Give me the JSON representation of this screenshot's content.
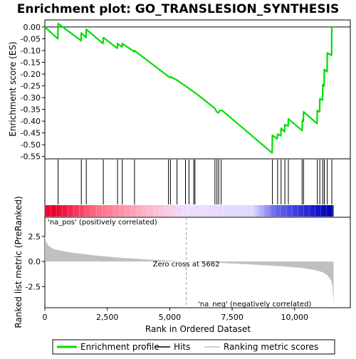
{
  "chart_data": {
    "type": "line",
    "title": "Enrichment plot: GO_TRANSLESION_SYNTHESIS",
    "top_panel": {
      "ylabel": "Enrichment score (ES)",
      "ylim": [
        -0.56,
        0.03
      ],
      "yticks": [
        0.0,
        -0.05,
        -0.1,
        -0.15,
        -0.2,
        -0.25,
        -0.3,
        -0.35,
        -0.4,
        -0.45,
        -0.5,
        -0.55
      ],
      "ytick_labels": [
        "0.00",
        "-0.05",
        "-0.10",
        "-0.15",
        "-0.20",
        "-0.25",
        "-0.30",
        "-0.35",
        "-0.40",
        "-0.45",
        "-0.50",
        "-0.55"
      ],
      "series_color": "#00dd00",
      "es_points": [
        [
          0,
          0.0
        ],
        [
          520,
          -0.05
        ],
        [
          530,
          0.015
        ],
        [
          1450,
          -0.058
        ],
        [
          1460,
          -0.025
        ],
        [
          1650,
          -0.045
        ],
        [
          1660,
          -0.01
        ],
        [
          2330,
          -0.07
        ],
        [
          2340,
          -0.045
        ],
        [
          2900,
          -0.09
        ],
        [
          2910,
          -0.07
        ],
        [
          3090,
          -0.085
        ],
        [
          3100,
          -0.07
        ],
        [
          3580,
          -0.105
        ],
        [
          3590,
          -0.1
        ],
        [
          4940,
          -0.21
        ],
        [
          5020,
          -0.215
        ],
        [
          5050,
          -0.212
        ],
        [
          5280,
          -0.225
        ],
        [
          5620,
          -0.25
        ],
        [
          5760,
          -0.26
        ],
        [
          5950,
          -0.275
        ],
        [
          6000,
          -0.278
        ],
        [
          6800,
          -0.345
        ],
        [
          6880,
          -0.36
        ],
        [
          6950,
          -0.365
        ],
        [
          7000,
          -0.355
        ],
        [
          7100,
          -0.355
        ],
        [
          9100,
          -0.535
        ],
        [
          9110,
          -0.46
        ],
        [
          9300,
          -0.475
        ],
        [
          9320,
          -0.455
        ],
        [
          9450,
          -0.462
        ],
        [
          9460,
          -0.43
        ],
        [
          9600,
          -0.445
        ],
        [
          9610,
          -0.415
        ],
        [
          9740,
          -0.42
        ],
        [
          9750,
          -0.39
        ],
        [
          10300,
          -0.44
        ],
        [
          10310,
          -0.395
        ],
        [
          10350,
          -0.4
        ],
        [
          10360,
          -0.36
        ],
        [
          10900,
          -0.41
        ],
        [
          10910,
          -0.355
        ],
        [
          11000,
          -0.36
        ],
        [
          11010,
          -0.305
        ],
        [
          11120,
          -0.31
        ],
        [
          11130,
          -0.245
        ],
        [
          11180,
          -0.25
        ],
        [
          11190,
          -0.18
        ],
        [
          11300,
          -0.19
        ],
        [
          11310,
          -0.11
        ],
        [
          11480,
          -0.12
        ],
        [
          11490,
          0.0
        ]
      ]
    },
    "hits_panel": {
      "hit_positions": [
        530,
        1460,
        1660,
        2340,
        2910,
        3100,
        3590,
        4950,
        5030,
        5290,
        5630,
        5770,
        5960,
        6010,
        6810,
        6890,
        6960,
        7060,
        9110,
        9320,
        9460,
        9610,
        9750,
        10300,
        10360,
        10910,
        11010,
        11130,
        11190,
        11310,
        11490
      ],
      "gradient_stops": [
        {
          "rank": 0,
          "color": "#ff0033"
        },
        {
          "rank": 400,
          "color": "#e8002e"
        },
        {
          "rank": 2100,
          "color": "#ff6d85"
        },
        {
          "rank": 4100,
          "color": "#ffb6c8"
        },
        {
          "rank": 5650,
          "color": "#f0dcff"
        },
        {
          "rank": 8350,
          "color": "#dcd8ff"
        },
        {
          "rank": 9200,
          "color": "#6868ee"
        },
        {
          "rank": 11000,
          "color": "#1010c8"
        },
        {
          "rank": 11560,
          "color": "#0000a0"
        }
      ]
    },
    "bottom_panel": {
      "ylabel": "Ranked list metric (PreRanked)",
      "ylim": [
        -4.6,
        4.4
      ],
      "yticks": [
        2.5,
        0.0,
        -2.5
      ],
      "ytick_labels": [
        "2.5",
        "0.0",
        "-2.5"
      ],
      "fill_color": "#c0c0c0",
      "metric_points": [
        [
          0,
          2.55
        ],
        [
          40,
          2.0
        ],
        [
          150,
          1.55
        ],
        [
          400,
          1.2
        ],
        [
          1000,
          0.9
        ],
        [
          2000,
          0.6
        ],
        [
          3000,
          0.38
        ],
        [
          4000,
          0.22
        ],
        [
          5000,
          0.08
        ],
        [
          5662,
          0.0
        ],
        [
          6500,
          -0.08
        ],
        [
          7500,
          -0.2
        ],
        [
          8500,
          -0.33
        ],
        [
          9500,
          -0.48
        ],
        [
          10300,
          -0.65
        ],
        [
          10800,
          -0.85
        ],
        [
          11100,
          -1.05
        ],
        [
          11300,
          -1.35
        ],
        [
          11450,
          -1.8
        ],
        [
          11520,
          -2.4
        ],
        [
          11560,
          -4.4
        ]
      ],
      "zero_cross_rank": 5662,
      "zero_cross_label": "Zero cross at 5662",
      "pos_label": "'na_pos' (positively correlated)",
      "neg_label": "'na_neg' (negatively correlated)"
    },
    "x_axis": {
      "xlabel": "Rank in Ordered Dataset",
      "xlim": [
        0,
        12230
      ],
      "xticks": [
        0,
        2500,
        5000,
        7500,
        10000
      ],
      "xtick_labels": [
        "0",
        "2,500",
        "5,000",
        "7,500",
        "10,000"
      ]
    },
    "legend": {
      "placement": "bottom",
      "items": [
        {
          "label": "Enrichment profile",
          "color": "#00dd00",
          "kind": "thick-line"
        },
        {
          "label": "Hits",
          "color": "#000000",
          "kind": "line"
        },
        {
          "label": "Ranking metric scores",
          "color": "#c0c0c0",
          "kind": "line"
        }
      ]
    }
  }
}
